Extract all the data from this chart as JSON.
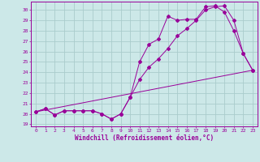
{
  "xlabel": "Windchill (Refroidissement éolien,°C)",
  "bg_color": "#cce8e8",
  "grid_color": "#aacccc",
  "line_color": "#990099",
  "xlim": [
    -0.5,
    23.5
  ],
  "ylim": [
    18.8,
    30.8
  ],
  "yticks": [
    19,
    20,
    21,
    22,
    23,
    24,
    25,
    26,
    27,
    28,
    29,
    30
  ],
  "xticks": [
    0,
    1,
    2,
    3,
    4,
    5,
    6,
    7,
    8,
    9,
    10,
    11,
    12,
    13,
    14,
    15,
    16,
    17,
    18,
    19,
    20,
    21,
    22,
    23
  ],
  "series1_x": [
    0,
    1,
    2,
    3,
    4,
    5,
    6,
    7,
    8,
    9,
    10,
    11,
    12,
    13,
    14,
    15,
    16,
    17,
    18,
    19,
    20,
    21,
    22,
    23
  ],
  "series1_y": [
    20.2,
    20.5,
    19.9,
    20.3,
    20.3,
    20.3,
    20.3,
    20.0,
    19.5,
    20.0,
    21.6,
    25.0,
    26.7,
    27.2,
    29.4,
    29.0,
    29.1,
    29.1,
    30.3,
    30.4,
    29.8,
    28.0,
    25.8,
    24.2
  ],
  "series2_x": [
    0,
    1,
    2,
    3,
    4,
    5,
    6,
    7,
    8,
    9,
    10,
    11,
    12,
    13,
    14,
    15,
    16,
    17,
    18,
    19,
    20,
    21,
    22,
    23
  ],
  "series2_y": [
    20.2,
    20.5,
    19.9,
    20.3,
    20.3,
    20.3,
    20.3,
    20.0,
    19.5,
    20.0,
    21.6,
    23.3,
    24.5,
    25.3,
    26.3,
    27.5,
    28.2,
    29.0,
    30.0,
    30.3,
    30.4,
    29.0,
    25.8,
    24.2
  ],
  "series3_x": [
    0,
    23
  ],
  "series3_y": [
    20.2,
    24.2
  ]
}
